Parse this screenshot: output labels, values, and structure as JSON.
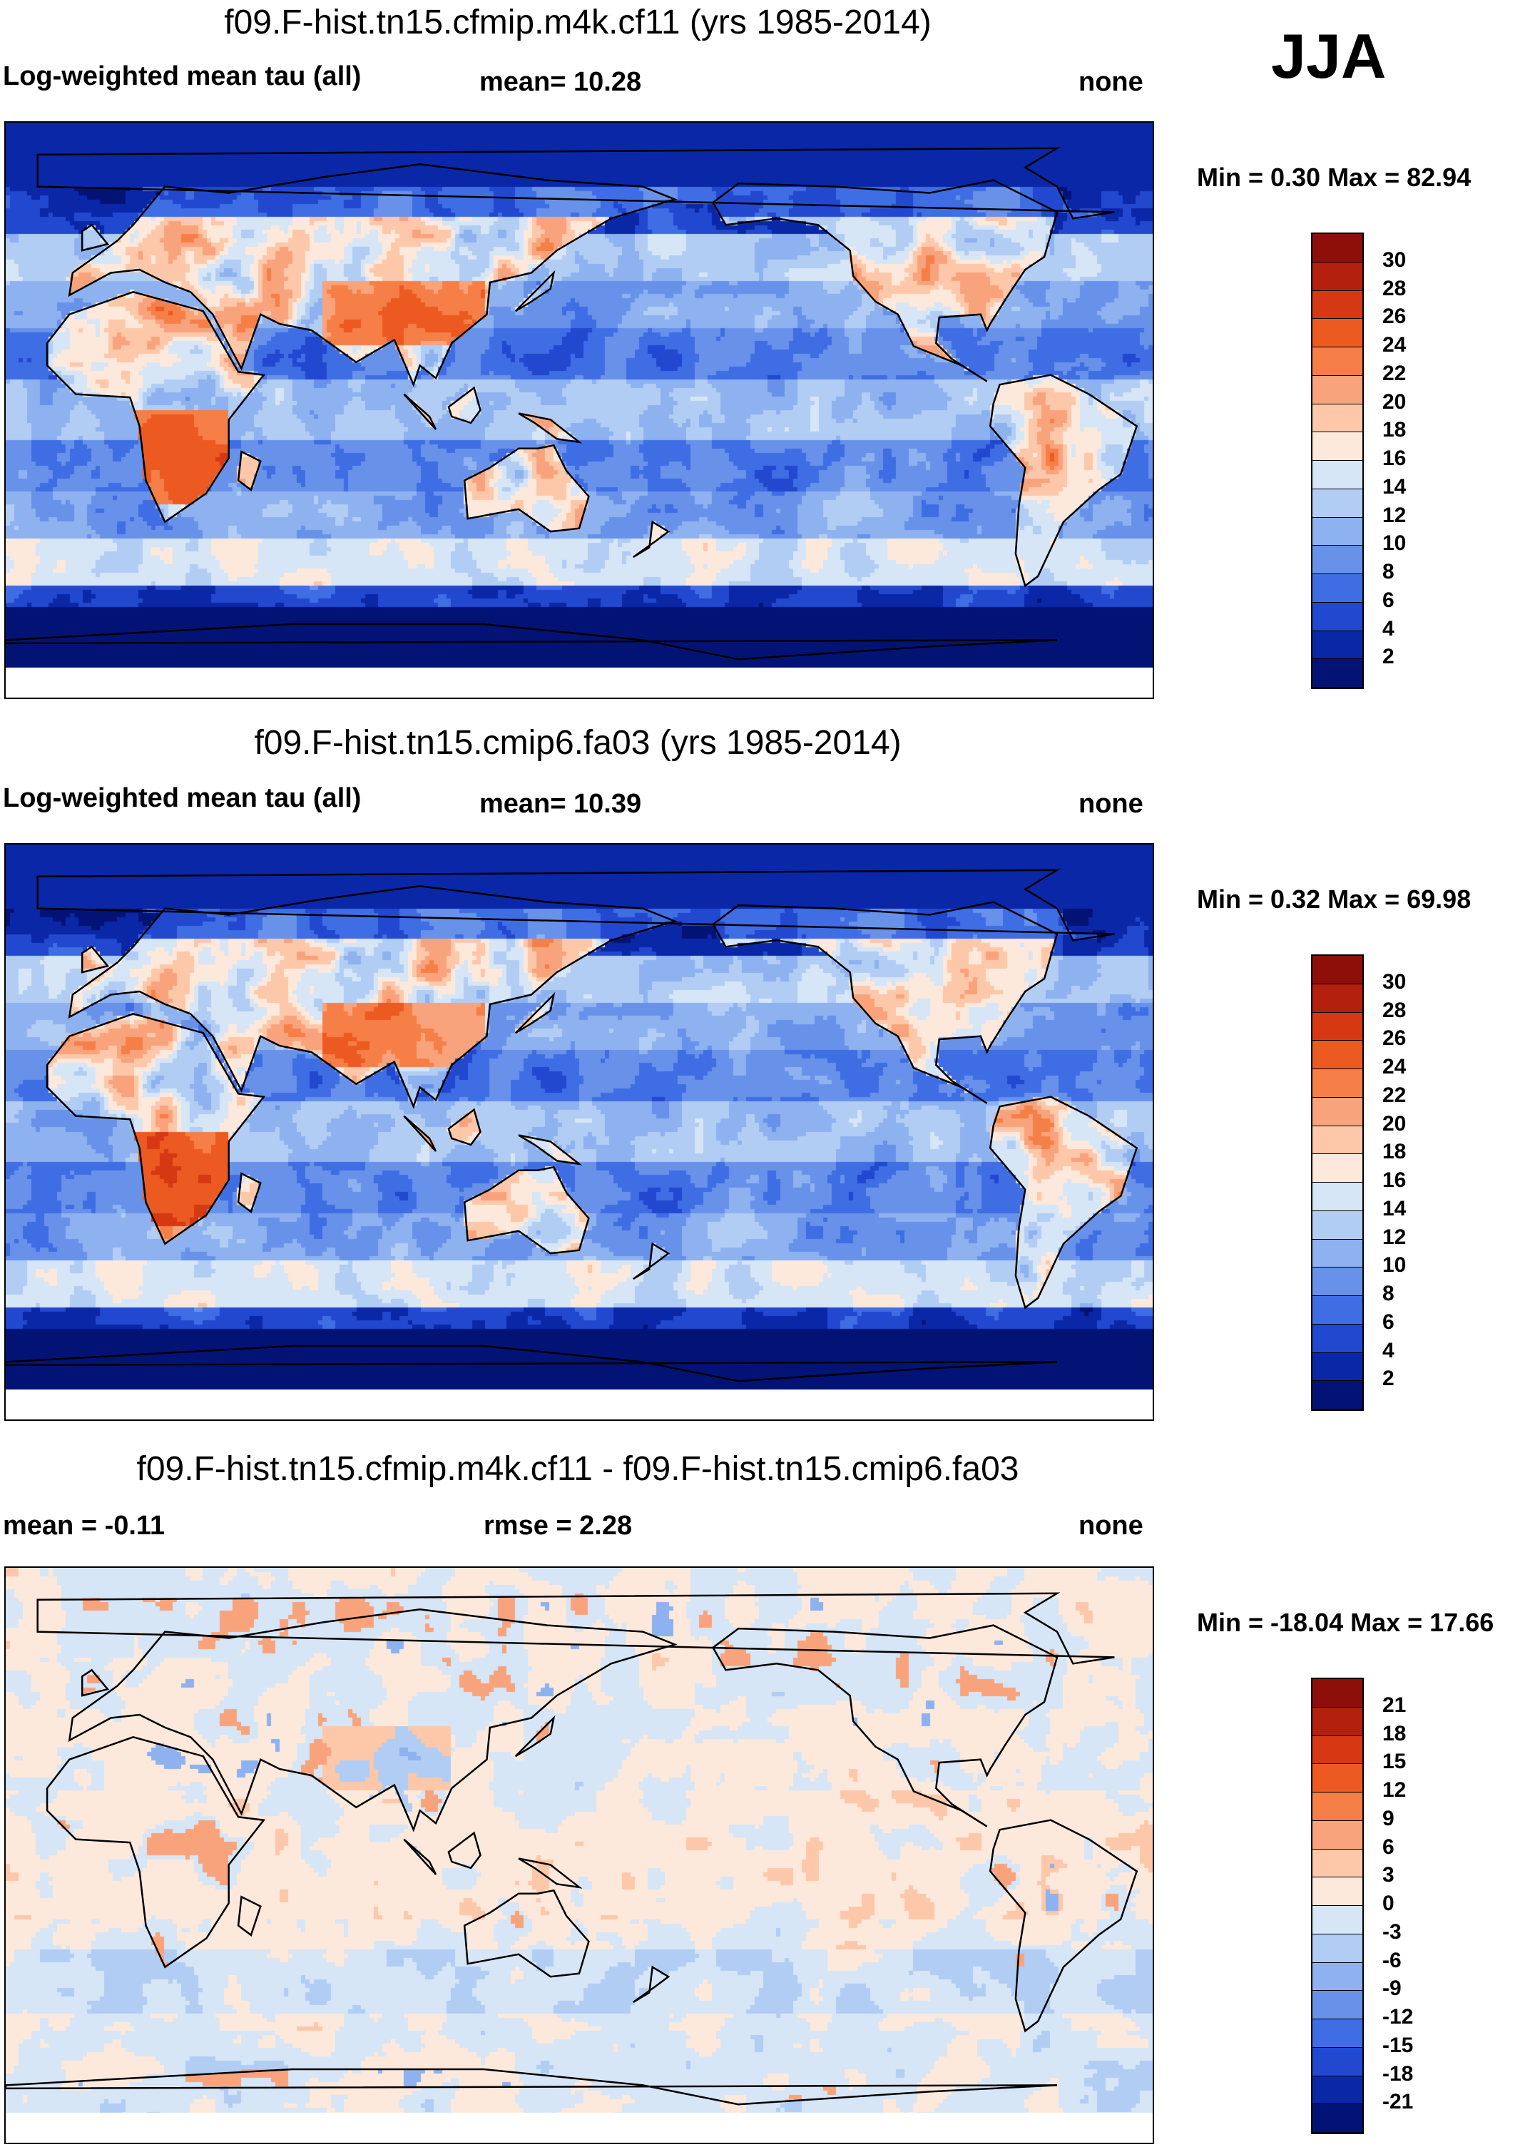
{
  "season": "JJA",
  "panels": [
    {
      "title": "f09.F-hist.tn15.cfmip.m4k.cf11 (yrs 1985-2014)",
      "left_label": "Log-weighted mean tau (all)",
      "center_label": "mean=  10.28",
      "right_label": "none",
      "minmax": "Min =   0.30 Max =  82.94",
      "colorbar_labels": [
        "30",
        "28",
        "26",
        "24",
        "22",
        "20",
        "18",
        "16",
        "14",
        "12",
        "10",
        "8",
        "6",
        "4",
        "2"
      ],
      "colorbar_colors": [
        "#8e0f0a",
        "#b3200e",
        "#d53812",
        "#ec5a22",
        "#f57f47",
        "#f9a37c",
        "#fcc8a9",
        "#fde9dc",
        "#d6e6f6",
        "#b2cdf3",
        "#8db2ef",
        "#6892ea",
        "#3f6de3",
        "#2148cf",
        "#0a27a8",
        "#031375"
      ],
      "data": "cfmip"
    },
    {
      "title": "f09.F-hist.tn15.cmip6.fa03 (yrs 1985-2014)",
      "left_label": "Log-weighted mean tau (all)",
      "center_label": "mean=  10.39",
      "right_label": "none",
      "minmax": "Min =   0.32 Max =  69.98",
      "colorbar_labels": [
        "30",
        "28",
        "26",
        "24",
        "22",
        "20",
        "18",
        "16",
        "14",
        "12",
        "10",
        "8",
        "6",
        "4",
        "2"
      ],
      "colorbar_colors": [
        "#8e0f0a",
        "#b3200e",
        "#d53812",
        "#ec5a22",
        "#f57f47",
        "#f9a37c",
        "#fcc8a9",
        "#fde9dc",
        "#d6e6f6",
        "#b2cdf3",
        "#8db2ef",
        "#6892ea",
        "#3f6de3",
        "#2148cf",
        "#0a27a8",
        "#031375"
      ],
      "data": "cmip6"
    },
    {
      "title": "f09.F-hist.tn15.cfmip.m4k.cf11 - f09.F-hist.tn15.cmip6.fa03",
      "left_label": "mean =  -0.11",
      "center_label": "rmse =    2.28",
      "right_label": "none",
      "minmax": "Min = -18.04 Max =  17.66",
      "colorbar_labels": [
        "21",
        "18",
        "15",
        "12",
        "9",
        "6",
        "3",
        "0",
        "-3",
        "-6",
        "-9",
        "-12",
        "-15",
        "-18",
        "-21"
      ],
      "colorbar_colors": [
        "#8e0f0a",
        "#b3200e",
        "#d53812",
        "#ec5a22",
        "#f57f47",
        "#f9a37c",
        "#fcc8a9",
        "#fde9dc",
        "#d6e6f6",
        "#b2cdf3",
        "#8db2ef",
        "#6892ea",
        "#3f6de3",
        "#2148cf",
        "#0a27a8",
        "#031375"
      ],
      "data": "diff"
    }
  ],
  "chart_data": [
    {
      "type": "heatmap",
      "title": "f09.F-hist.tn15.cfmip.m4k.cf11 (yrs 1985-2014)",
      "variable": "Log-weighted mean tau (all)",
      "mean": 10.28,
      "min": 0.3,
      "max": 82.94,
      "colorbar_ticks": [
        2,
        4,
        6,
        8,
        10,
        12,
        14,
        16,
        18,
        20,
        22,
        24,
        26,
        28,
        30
      ],
      "xlabel": "",
      "ylabel": ""
    },
    {
      "type": "heatmap",
      "title": "f09.F-hist.tn15.cmip6.fa03 (yrs 1985-2014)",
      "variable": "Log-weighted mean tau (all)",
      "mean": 10.39,
      "min": 0.32,
      "max": 69.98,
      "colorbar_ticks": [
        2,
        4,
        6,
        8,
        10,
        12,
        14,
        16,
        18,
        20,
        22,
        24,
        26,
        28,
        30
      ],
      "xlabel": "",
      "ylabel": ""
    },
    {
      "type": "heatmap",
      "title": "f09.F-hist.tn15.cfmip.m4k.cf11 - f09.F-hist.tn15.cmip6.fa03",
      "mean": -0.11,
      "rmse": 2.28,
      "min": -18.04,
      "max": 17.66,
      "colorbar_ticks": [
        -21,
        -18,
        -15,
        -12,
        -9,
        -6,
        -3,
        0,
        3,
        6,
        9,
        12,
        15,
        18,
        21
      ],
      "xlabel": "",
      "ylabel": ""
    }
  ]
}
